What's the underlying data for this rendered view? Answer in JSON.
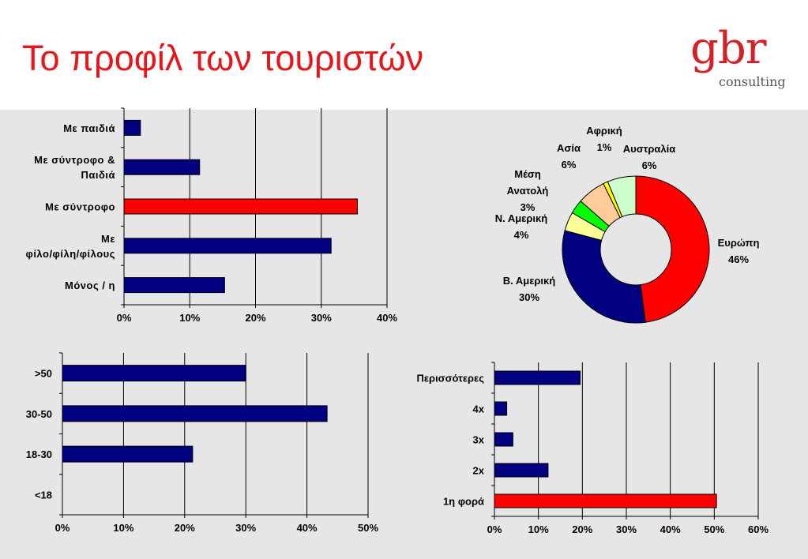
{
  "slide": {
    "title": "Το προφίλ των τουριστών",
    "logo": {
      "main": "gbr",
      "sub": "consulting"
    }
  },
  "colors": {
    "bar": "#000080",
    "highlight": "#ff0000",
    "title": "#e8161b",
    "panel": "#e6e6e6"
  },
  "chart_data": [
    {
      "type": "bar",
      "orientation": "horizontal",
      "categories": [
        "Με παιδιά",
        "Με σύντροφο & Παιδιά",
        "Με σύντροφο",
        "Με φίλο/φίλη/φίλους",
        "Μόνος / η"
      ],
      "category_lines": [
        [
          "Με παιδιά"
        ],
        [
          "Με σύντροφο &",
          "Παιδιά"
        ],
        [
          "Με σύντροφο"
        ],
        [
          "Με",
          "φίλο/φίλη/φίλους"
        ],
        [
          "Μόνος / η"
        ]
      ],
      "values": [
        2.5,
        11.5,
        35.5,
        31.5,
        15.3
      ],
      "highlight_index": 2,
      "xlim": [
        0,
        40
      ],
      "xticks": [
        "0%",
        "10%",
        "20%",
        "30%",
        "40%"
      ],
      "grid": true
    },
    {
      "type": "pie",
      "style": "donut",
      "slices": [
        {
          "label": "Ευρώπη",
          "value": 46,
          "value_label": "46%",
          "color": "#ff0000"
        },
        {
          "label": "Β. Αμερική",
          "value": 30,
          "value_label": "30%",
          "color": "#000080"
        },
        {
          "label": "Ν. Αμερική",
          "value": 4,
          "value_label": "4%",
          "color": "#ffff99"
        },
        {
          "label": "Μέση Ανατολή",
          "value": 3,
          "value_label": "3%",
          "color": "#00ff00"
        },
        {
          "label": "Ασία",
          "value": 6,
          "value_label": "6%",
          "color": "#ffcc99"
        },
        {
          "label": "Αφρική",
          "value": 1,
          "value_label": "1%",
          "color": "#ffff00"
        },
        {
          "label": "Αυστραλία",
          "value": 6,
          "value_label": "6%",
          "color": "#ccffcc"
        }
      ]
    },
    {
      "type": "bar",
      "orientation": "horizontal",
      "categories": [
        ">50",
        "30-50",
        "18-30",
        "<18"
      ],
      "values": [
        30,
        43.3,
        21.3,
        0
      ],
      "xlim": [
        0,
        50
      ],
      "xticks": [
        "0%",
        "10%",
        "20%",
        "30%",
        "40%",
        "50%"
      ],
      "grid": true
    },
    {
      "type": "bar",
      "orientation": "horizontal",
      "categories": [
        "Περισσότερες",
        "4x",
        "3x",
        "2x",
        "1η φορά"
      ],
      "values": [
        19.5,
        2.8,
        4.2,
        12.2,
        50.5
      ],
      "highlight_index": 4,
      "xlim": [
        0,
        60
      ],
      "xticks": [
        "0%",
        "10%",
        "20%",
        "30%",
        "40%",
        "50%",
        "60%"
      ],
      "grid": true
    }
  ]
}
